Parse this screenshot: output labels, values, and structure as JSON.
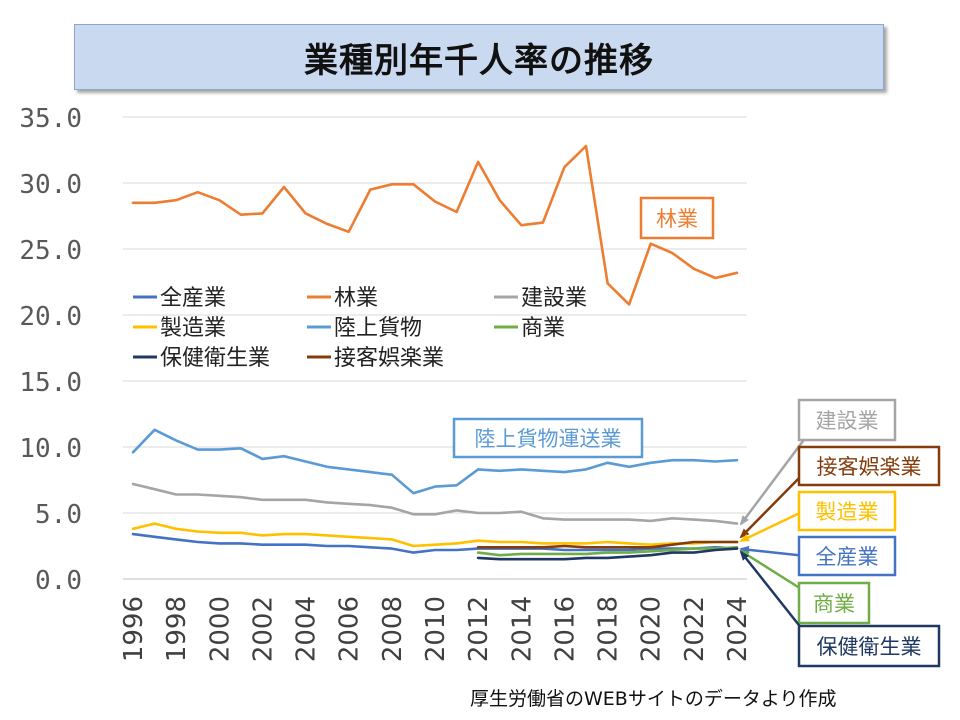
{
  "chart_data": {
    "type": "line",
    "title": "業種別年千人率の推移",
    "xlabel": "",
    "ylabel": "",
    "ylim": [
      0,
      35
    ],
    "yticks": [
      "0.0",
      "5.0",
      "10.0",
      "15.0",
      "20.0",
      "25.0",
      "30.0",
      "35.0"
    ],
    "xticks": [
      "1996",
      "1998",
      "2000",
      "2002",
      "2004",
      "2006",
      "2008",
      "2010",
      "2012",
      "2014",
      "2016",
      "2018",
      "2020",
      "2022",
      "2024"
    ],
    "grid": true,
    "legend_position": "middle-left",
    "series": [
      {
        "name": "全産業",
        "color": "#4472c4",
        "start": 1996,
        "values": [
          3.4,
          3.2,
          3.0,
          2.8,
          2.7,
          2.7,
          2.6,
          2.6,
          2.6,
          2.5,
          2.5,
          2.4,
          2.3,
          2.0,
          2.2,
          2.2,
          2.3,
          2.3,
          2.3,
          2.3,
          2.2,
          2.2,
          2.2,
          2.2,
          2.3,
          2.3,
          2.3,
          2.4,
          2.3
        ]
      },
      {
        "name": "林業",
        "color": "#ed7d31",
        "start": 1996,
        "values": [
          28.5,
          28.5,
          28.7,
          29.3,
          28.7,
          27.6,
          27.7,
          29.7,
          27.7,
          26.9,
          26.3,
          29.5,
          29.9,
          29.9,
          28.6,
          27.8,
          31.6,
          28.7,
          26.8,
          27.0,
          31.2,
          32.8,
          22.4,
          20.8,
          25.4,
          24.7,
          23.5,
          22.8,
          23.2
        ]
      },
      {
        "name": "建設業",
        "color": "#a5a5a5",
        "start": 1996,
        "values": [
          7.2,
          6.8,
          6.4,
          6.4,
          6.3,
          6.2,
          6.0,
          6.0,
          6.0,
          5.8,
          5.7,
          5.6,
          5.4,
          4.9,
          4.9,
          5.2,
          5.0,
          5.0,
          5.1,
          4.6,
          4.5,
          4.5,
          4.5,
          4.5,
          4.4,
          4.6,
          4.5,
          4.4,
          4.2
        ]
      },
      {
        "name": "製造業",
        "color": "#ffc000",
        "start": 1996,
        "values": [
          3.8,
          4.2,
          3.8,
          3.6,
          3.5,
          3.5,
          3.3,
          3.4,
          3.4,
          3.3,
          3.2,
          3.1,
          3.0,
          2.5,
          2.6,
          2.7,
          2.9,
          2.8,
          2.8,
          2.7,
          2.7,
          2.7,
          2.8,
          2.7,
          2.6,
          2.7,
          2.7,
          2.8,
          2.8
        ]
      },
      {
        "name": "陸上貨物",
        "color": "#5b9bd5",
        "start": 1996,
        "values": [
          9.6,
          11.3,
          10.5,
          9.8,
          9.8,
          9.9,
          9.1,
          9.3,
          8.9,
          8.5,
          8.3,
          8.1,
          7.9,
          6.5,
          7.0,
          7.1,
          8.3,
          8.2,
          8.3,
          8.2,
          8.1,
          8.3,
          8.8,
          8.5,
          8.8,
          9.0,
          9.0,
          8.9,
          9.0
        ]
      },
      {
        "name": "商業",
        "color": "#70ad47",
        "start": 2012,
        "values": [
          2.0,
          1.8,
          1.9,
          1.9,
          1.9,
          1.9,
          2.0,
          2.0,
          2.1,
          2.2,
          2.3,
          2.3,
          2.4
        ]
      },
      {
        "name": "保健衛生業",
        "color": "#1f3864",
        "start": 2012,
        "values": [
          1.6,
          1.5,
          1.5,
          1.5,
          1.5,
          1.6,
          1.6,
          1.7,
          1.8,
          2.0,
          2.0,
          2.2,
          2.3
        ]
      },
      {
        "name": "接客娯楽業",
        "color": "#843c0c",
        "start": 2012,
        "values": [
          2.4,
          2.4,
          2.4,
          2.4,
          2.5,
          2.4,
          2.4,
          2.4,
          2.4,
          2.6,
          2.8,
          2.8,
          2.8
        ]
      }
    ],
    "annotations": [
      {
        "text": "林業",
        "series": "林業"
      },
      {
        "text": "陸上貨物運送業",
        "series": "陸上貨物"
      },
      {
        "text": "建設業",
        "series": "建設業"
      },
      {
        "text": "接客娯楽業",
        "series": "接客娯楽業"
      },
      {
        "text": "製造業",
        "series": "製造業"
      },
      {
        "text": "全産業",
        "series": "全産業"
      },
      {
        "text": "商業",
        "series": "商業"
      },
      {
        "text": "保健衛生業",
        "series": "保健衛生業"
      }
    ]
  },
  "source_note": "厚生労働省のWEBサイトのデータより作成"
}
